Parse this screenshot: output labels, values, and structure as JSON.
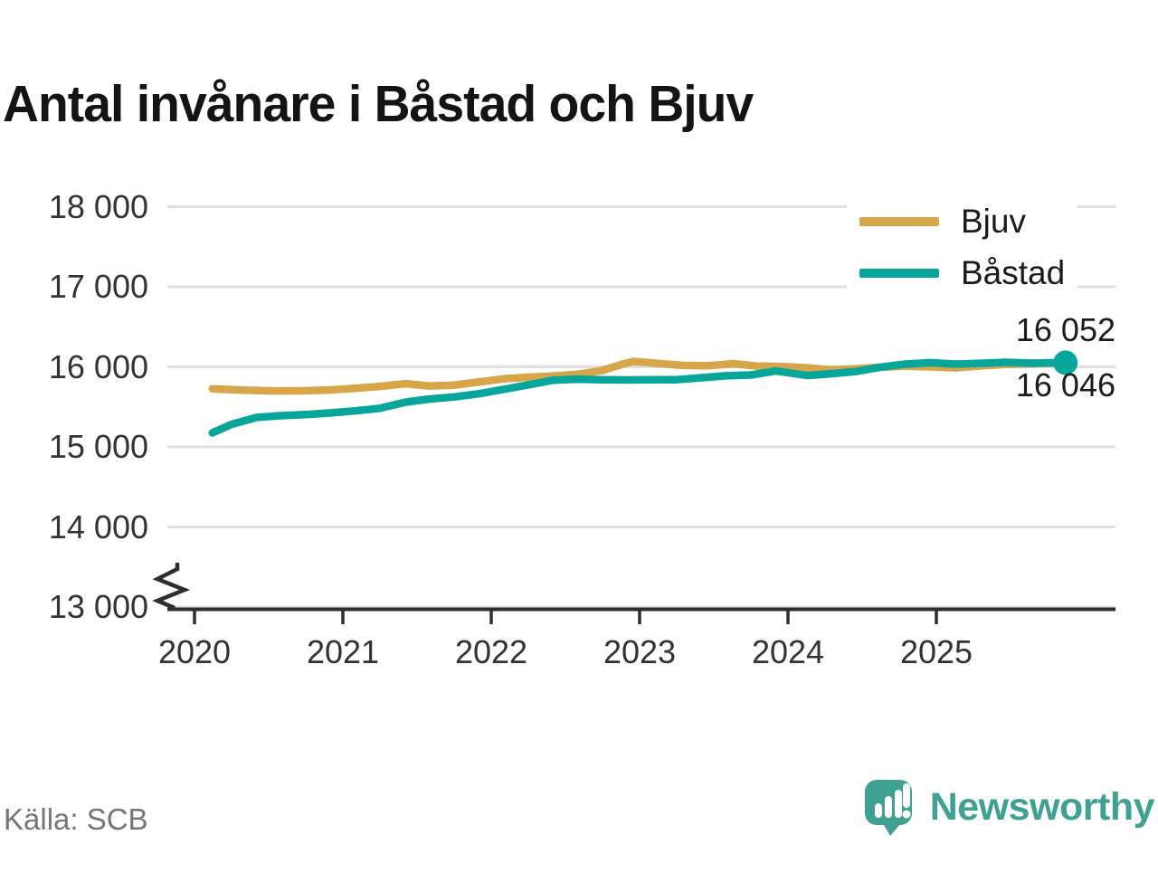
{
  "title": "Antal invånare i Båstad och Bjuv",
  "source": "Källa: SCB",
  "branding": {
    "name": "Newsworthy",
    "color": "#3ea192",
    "icon": "newsworthy-speech-bubble-chart-icon"
  },
  "colors": {
    "grid": "#e0e0e0",
    "axis": "#2e2e2e",
    "bjuv": "#d7a64a",
    "bastad": "#06a79a",
    "label_text": "#1c1c1c",
    "axis_text": "#333333",
    "muted_text": "#767676"
  },
  "legend": [
    {
      "id": "bjuv",
      "label": "Bjuv",
      "color": "#d7a64a"
    },
    {
      "id": "bastad",
      "label": "Båstad",
      "color": "#06a79a"
    }
  ],
  "end_labels": [
    {
      "series": "Båstad",
      "text": "16 052",
      "value": 16052,
      "position": "above"
    },
    {
      "series": "Bjuv",
      "text": "16 046",
      "value": 16046,
      "position": "below"
    }
  ],
  "chart_data": {
    "type": "line",
    "title": "Antal invånare i Båstad och Bjuv",
    "xlabel": "",
    "ylabel": "",
    "x_ticks": [
      "2020",
      "2021",
      "2022",
      "2023",
      "2024",
      "2025"
    ],
    "x_tick_values": [
      2020,
      2021,
      2022,
      2023,
      2024,
      2025
    ],
    "y_ticks": [
      "18 000",
      "17 000",
      "16 000",
      "15 000",
      "14 000",
      "13 000"
    ],
    "y_tick_values": [
      18000,
      17000,
      16000,
      15000,
      14000,
      13000
    ],
    "ylim": [
      13000,
      18000
    ],
    "axis_break": true,
    "grid": "horizontal",
    "legend_position": "top-right",
    "x_unit": "year (monthly data)",
    "y_unit": "inhabitants",
    "series": [
      {
        "id": "bjuv",
        "name": "Bjuv",
        "color": "#d7a64a",
        "final_value": 16046,
        "end_dot": false,
        "points": [
          [
            2020.12,
            15725
          ],
          [
            2020.33,
            15708
          ],
          [
            2020.54,
            15700
          ],
          [
            2020.75,
            15702
          ],
          [
            2020.92,
            15712
          ],
          [
            2021.08,
            15732
          ],
          [
            2021.25,
            15756
          ],
          [
            2021.42,
            15790
          ],
          [
            2021.58,
            15762
          ],
          [
            2021.75,
            15772
          ],
          [
            2021.92,
            15812
          ],
          [
            2022.08,
            15850
          ],
          [
            2022.25,
            15870
          ],
          [
            2022.42,
            15886
          ],
          [
            2022.58,
            15906
          ],
          [
            2022.75,
            15956
          ],
          [
            2022.88,
            16030
          ],
          [
            2022.96,
            16068
          ],
          [
            2023.13,
            16042
          ],
          [
            2023.29,
            16018
          ],
          [
            2023.46,
            16014
          ],
          [
            2023.63,
            16040
          ],
          [
            2023.79,
            16010
          ],
          [
            2023.96,
            16004
          ],
          [
            2024.13,
            15988
          ],
          [
            2024.29,
            15962
          ],
          [
            2024.46,
            15976
          ],
          [
            2024.63,
            15996
          ],
          [
            2024.79,
            16008
          ],
          [
            2024.96,
            16000
          ],
          [
            2025.13,
            15988
          ],
          [
            2025.3,
            16012
          ],
          [
            2025.47,
            16030
          ],
          [
            2025.63,
            16038
          ],
          [
            2025.83,
            16046
          ]
        ]
      },
      {
        "id": "bastad",
        "name": "Båstad",
        "color": "#06a79a",
        "final_value": 16052,
        "end_dot": true,
        "points": [
          [
            2020.12,
            15175
          ],
          [
            2020.25,
            15282
          ],
          [
            2020.42,
            15368
          ],
          [
            2020.58,
            15390
          ],
          [
            2020.75,
            15405
          ],
          [
            2020.92,
            15425
          ],
          [
            2021.08,
            15450
          ],
          [
            2021.25,
            15482
          ],
          [
            2021.42,
            15558
          ],
          [
            2021.58,
            15598
          ],
          [
            2021.75,
            15624
          ],
          [
            2021.92,
            15664
          ],
          [
            2022.08,
            15718
          ],
          [
            2022.25,
            15775
          ],
          [
            2022.42,
            15834
          ],
          [
            2022.58,
            15846
          ],
          [
            2022.75,
            15840
          ],
          [
            2022.92,
            15836
          ],
          [
            2023.08,
            15838
          ],
          [
            2023.25,
            15840
          ],
          [
            2023.42,
            15864
          ],
          [
            2023.58,
            15888
          ],
          [
            2023.75,
            15898
          ],
          [
            2023.92,
            15948
          ],
          [
            2024.13,
            15892
          ],
          [
            2024.29,
            15914
          ],
          [
            2024.46,
            15942
          ],
          [
            2024.63,
            15998
          ],
          [
            2024.79,
            16034
          ],
          [
            2024.96,
            16052
          ],
          [
            2025.13,
            16034
          ],
          [
            2025.3,
            16044
          ],
          [
            2025.47,
            16056
          ],
          [
            2025.63,
            16046
          ],
          [
            2025.87,
            16052
          ]
        ]
      }
    ]
  }
}
